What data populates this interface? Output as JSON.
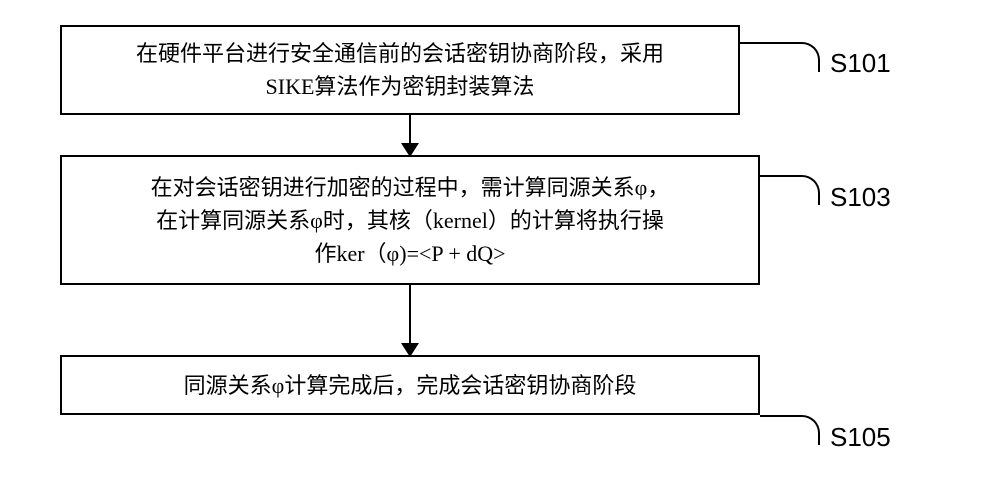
{
  "flowchart": {
    "type": "flowchart",
    "background_color": "#ffffff",
    "border_color": "#000000",
    "border_width": 2,
    "arrow_color": "#000000",
    "text_color": "#000000",
    "box_font_size": 22,
    "label_font_size": 26,
    "nodes": [
      {
        "id": "box1",
        "lines": [
          "在硬件平台进行安全通信前的会话密钥协商阶段，采用",
          "SIKE算法作为密钥封装算法"
        ],
        "label": "S101"
      },
      {
        "id": "box2",
        "lines": [
          "在对会话密钥进行加密的过程中，需计算同源关系φ，",
          "在计算同源关系φ时，其核（kernel）的计算将执行操",
          "作ker（φ)=<P + dQ>"
        ],
        "label": "S103"
      },
      {
        "id": "box3",
        "lines": [
          "同源关系φ计算完成后，完成会话密钥协商阶段"
        ],
        "label": "S105"
      }
    ],
    "edges": [
      {
        "from": "box1",
        "to": "box2"
      },
      {
        "from": "box2",
        "to": "box3"
      }
    ]
  }
}
